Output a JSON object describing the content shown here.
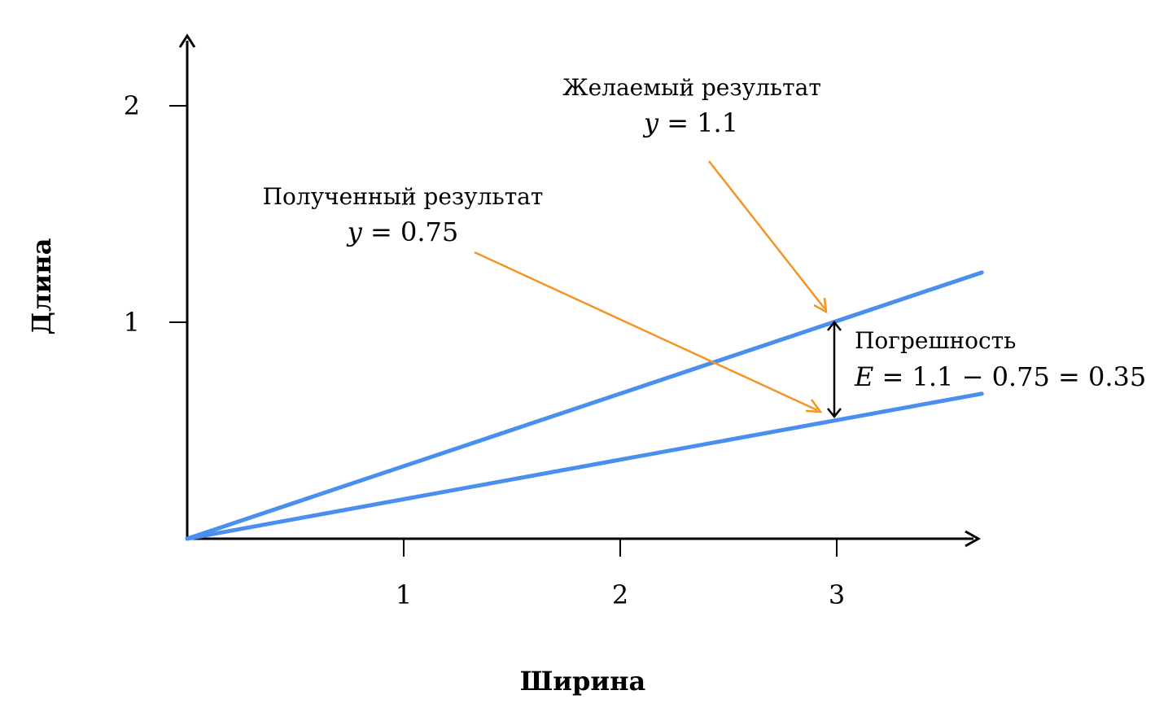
{
  "chart_data": {
    "type": "line",
    "xlabel": "Ширина",
    "ylabel": "Длина",
    "xlim": [
      0,
      3.67
    ],
    "ylim": [
      0,
      2.32
    ],
    "x_ticks": [
      "1",
      "2",
      "3"
    ],
    "y_ticks": [
      "1",
      "2"
    ],
    "grid": false,
    "series": [
      {
        "x": [
          0,
          3.67
        ],
        "y": [
          0,
          1.23
        ]
      },
      {
        "x": [
          0,
          3.67
        ],
        "y": [
          0,
          0.67
        ]
      }
    ],
    "annotations": {
      "obtained": {
        "title": "Полученный результат",
        "eq_var": "y",
        "eq_rest": " = 0.75"
      },
      "desired": {
        "title": "Желаемый результат",
        "eq_var": "y",
        "eq_rest": " = 1.1"
      },
      "error": {
        "title": "Погрешность",
        "eq_var": "E",
        "eq_rest": " = 1.1 − 0.75 = 0.35"
      }
    },
    "colors": {
      "line": "#4a8ff0",
      "arrow": "#f39424",
      "axis": "#000000"
    }
  }
}
